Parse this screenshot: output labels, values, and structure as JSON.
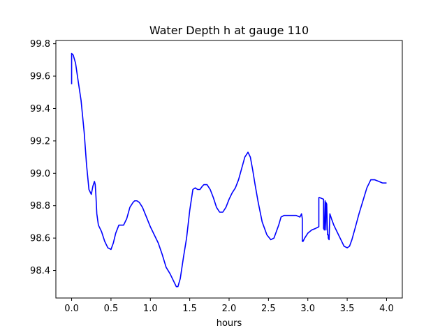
{
  "chart_data": {
    "type": "line",
    "title": "Water Depth h at gauge 110",
    "xlabel": "hours",
    "ylabel": "",
    "xlim": [
      -0.2,
      4.2
    ],
    "ylim": [
      98.23,
      99.82
    ],
    "xticks": [
      0.0,
      0.5,
      1.0,
      1.5,
      2.0,
      2.5,
      3.0,
      3.5,
      4.0
    ],
    "xtick_labels": [
      "0.0",
      "0.5",
      "1.0",
      "1.5",
      "2.0",
      "2.5",
      "3.0",
      "3.5",
      "4.0"
    ],
    "yticks": [
      98.4,
      98.6,
      98.8,
      99.0,
      99.2,
      99.4,
      99.6,
      99.8
    ],
    "ytick_labels": [
      "98.4",
      "98.6",
      "98.8",
      "99.0",
      "99.2",
      "99.4",
      "99.6",
      "99.8"
    ],
    "grid": false,
    "series": [
      {
        "color": "#0000ff",
        "x": [
          0.0,
          0.0,
          0.02,
          0.05,
          0.08,
          0.12,
          0.16,
          0.19,
          0.22,
          0.25,
          0.27,
          0.29,
          0.3,
          0.31,
          0.32,
          0.34,
          0.36,
          0.38,
          0.42,
          0.46,
          0.5,
          0.53,
          0.56,
          0.6,
          0.63,
          0.66,
          0.7,
          0.74,
          0.78,
          0.8,
          0.83,
          0.86,
          0.9,
          0.95,
          1.0,
          1.05,
          1.1,
          1.15,
          1.2,
          1.25,
          1.3,
          1.33,
          1.35,
          1.38,
          1.42,
          1.46,
          1.5,
          1.54,
          1.57,
          1.6,
          1.63,
          1.66,
          1.68,
          1.72,
          1.76,
          1.8,
          1.84,
          1.88,
          1.92,
          1.96,
          2.0,
          2.04,
          2.08,
          2.12,
          2.16,
          2.2,
          2.24,
          2.27,
          2.3,
          2.33,
          2.37,
          2.42,
          2.48,
          2.53,
          2.57,
          2.6,
          2.63,
          2.66,
          2.7,
          2.73,
          2.76,
          2.8,
          2.85,
          2.9,
          2.92,
          2.93,
          2.93,
          2.94,
          2.96,
          3.0,
          3.05,
          3.1,
          3.14,
          3.14,
          3.15,
          3.2,
          3.2,
          3.21,
          3.22,
          3.22,
          3.23,
          3.23,
          3.24,
          3.25,
          3.26,
          3.26,
          3.27,
          3.28,
          3.28,
          3.3,
          3.33,
          3.37,
          3.42,
          3.46,
          3.5,
          3.53,
          3.56,
          3.6,
          3.65,
          3.7,
          3.75,
          3.8,
          3.85,
          3.9,
          3.95,
          4.0
        ],
        "y": [
          99.55,
          99.74,
          99.73,
          99.68,
          99.58,
          99.45,
          99.25,
          99.05,
          98.9,
          98.87,
          98.92,
          98.95,
          98.93,
          98.85,
          98.75,
          98.68,
          98.66,
          98.64,
          98.58,
          98.54,
          98.53,
          98.57,
          98.63,
          98.68,
          98.68,
          98.68,
          98.72,
          98.79,
          98.82,
          98.83,
          98.83,
          98.82,
          98.79,
          98.73,
          98.67,
          98.62,
          98.57,
          98.5,
          98.42,
          98.38,
          98.33,
          98.3,
          98.3,
          98.35,
          98.48,
          98.6,
          98.77,
          98.9,
          98.91,
          98.9,
          98.9,
          98.92,
          98.93,
          98.93,
          98.9,
          98.85,
          98.79,
          98.76,
          98.76,
          98.79,
          98.84,
          98.88,
          98.91,
          98.96,
          99.03,
          99.1,
          99.13,
          99.1,
          99.02,
          98.93,
          98.82,
          98.7,
          98.62,
          98.59,
          98.6,
          98.64,
          98.68,
          98.73,
          98.74,
          98.74,
          98.74,
          98.74,
          98.74,
          98.73,
          98.75,
          98.72,
          98.58,
          98.58,
          98.6,
          98.63,
          98.65,
          98.66,
          98.67,
          98.85,
          98.85,
          98.84,
          98.66,
          98.65,
          98.83,
          98.82,
          98.65,
          98.82,
          98.81,
          98.62,
          98.62,
          98.6,
          98.59,
          98.75,
          98.75,
          98.72,
          98.68,
          98.64,
          98.59,
          98.55,
          98.54,
          98.55,
          98.59,
          98.66,
          98.75,
          98.83,
          98.91,
          98.96,
          98.96,
          98.95,
          98.94,
          98.94
        ]
      }
    ]
  }
}
